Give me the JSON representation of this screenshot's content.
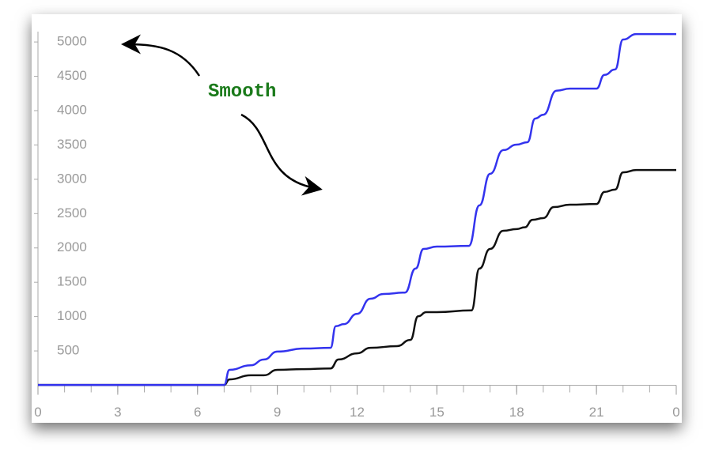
{
  "chart_data": {
    "type": "line",
    "annotation": "Smooth",
    "xlim": [
      0,
      24
    ],
    "xticks": [
      0,
      3,
      6,
      9,
      12,
      15,
      18,
      21,
      {
        "value": 24,
        "label": "0"
      }
    ],
    "ylim": [
      0,
      5000
    ],
    "yticks": [
      500,
      1000,
      1500,
      2000,
      2500,
      3000,
      3500,
      4000,
      4500,
      5000
    ],
    "grid": false,
    "series": [
      {
        "color": "#3333ee",
        "x": [
          0,
          7,
          7.2,
          8,
          8.5,
          9,
          10,
          11,
          11.2,
          11.5,
          12,
          12.5,
          13,
          13.8,
          14.2,
          14.5,
          15,
          16.2,
          16.6,
          17,
          17.5,
          18,
          18.4,
          18.7,
          19,
          19.5,
          20,
          21,
          21.3,
          21.7,
          22,
          22.5,
          24
        ],
        "values": [
          5,
          5,
          225,
          290,
          375,
          490,
          535,
          545,
          860,
          890,
          1040,
          1260,
          1330,
          1350,
          1700,
          1985,
          2020,
          2030,
          2620,
          3080,
          3425,
          3505,
          3540,
          3885,
          3940,
          4290,
          4320,
          4320,
          4520,
          4600,
          5035,
          5115,
          5115
        ]
      },
      {
        "color": "#111111",
        "x": [
          0,
          7,
          7.2,
          8,
          8.5,
          9,
          10,
          11,
          11.3,
          12,
          12.5,
          13.5,
          14,
          14.3,
          14.6,
          15,
          16.3,
          16.6,
          17,
          17.5,
          18,
          18.3,
          18.6,
          19,
          19.4,
          20,
          21,
          21.3,
          21.7,
          22,
          22.5,
          24
        ],
        "values": [
          5,
          5,
          85,
          145,
          145,
          225,
          235,
          245,
          375,
          465,
          545,
          570,
          660,
          1005,
          1065,
          1065,
          1090,
          1700,
          1985,
          2250,
          2275,
          2300,
          2410,
          2435,
          2595,
          2630,
          2640,
          2815,
          2850,
          3100,
          3135,
          3135
        ]
      }
    ]
  }
}
